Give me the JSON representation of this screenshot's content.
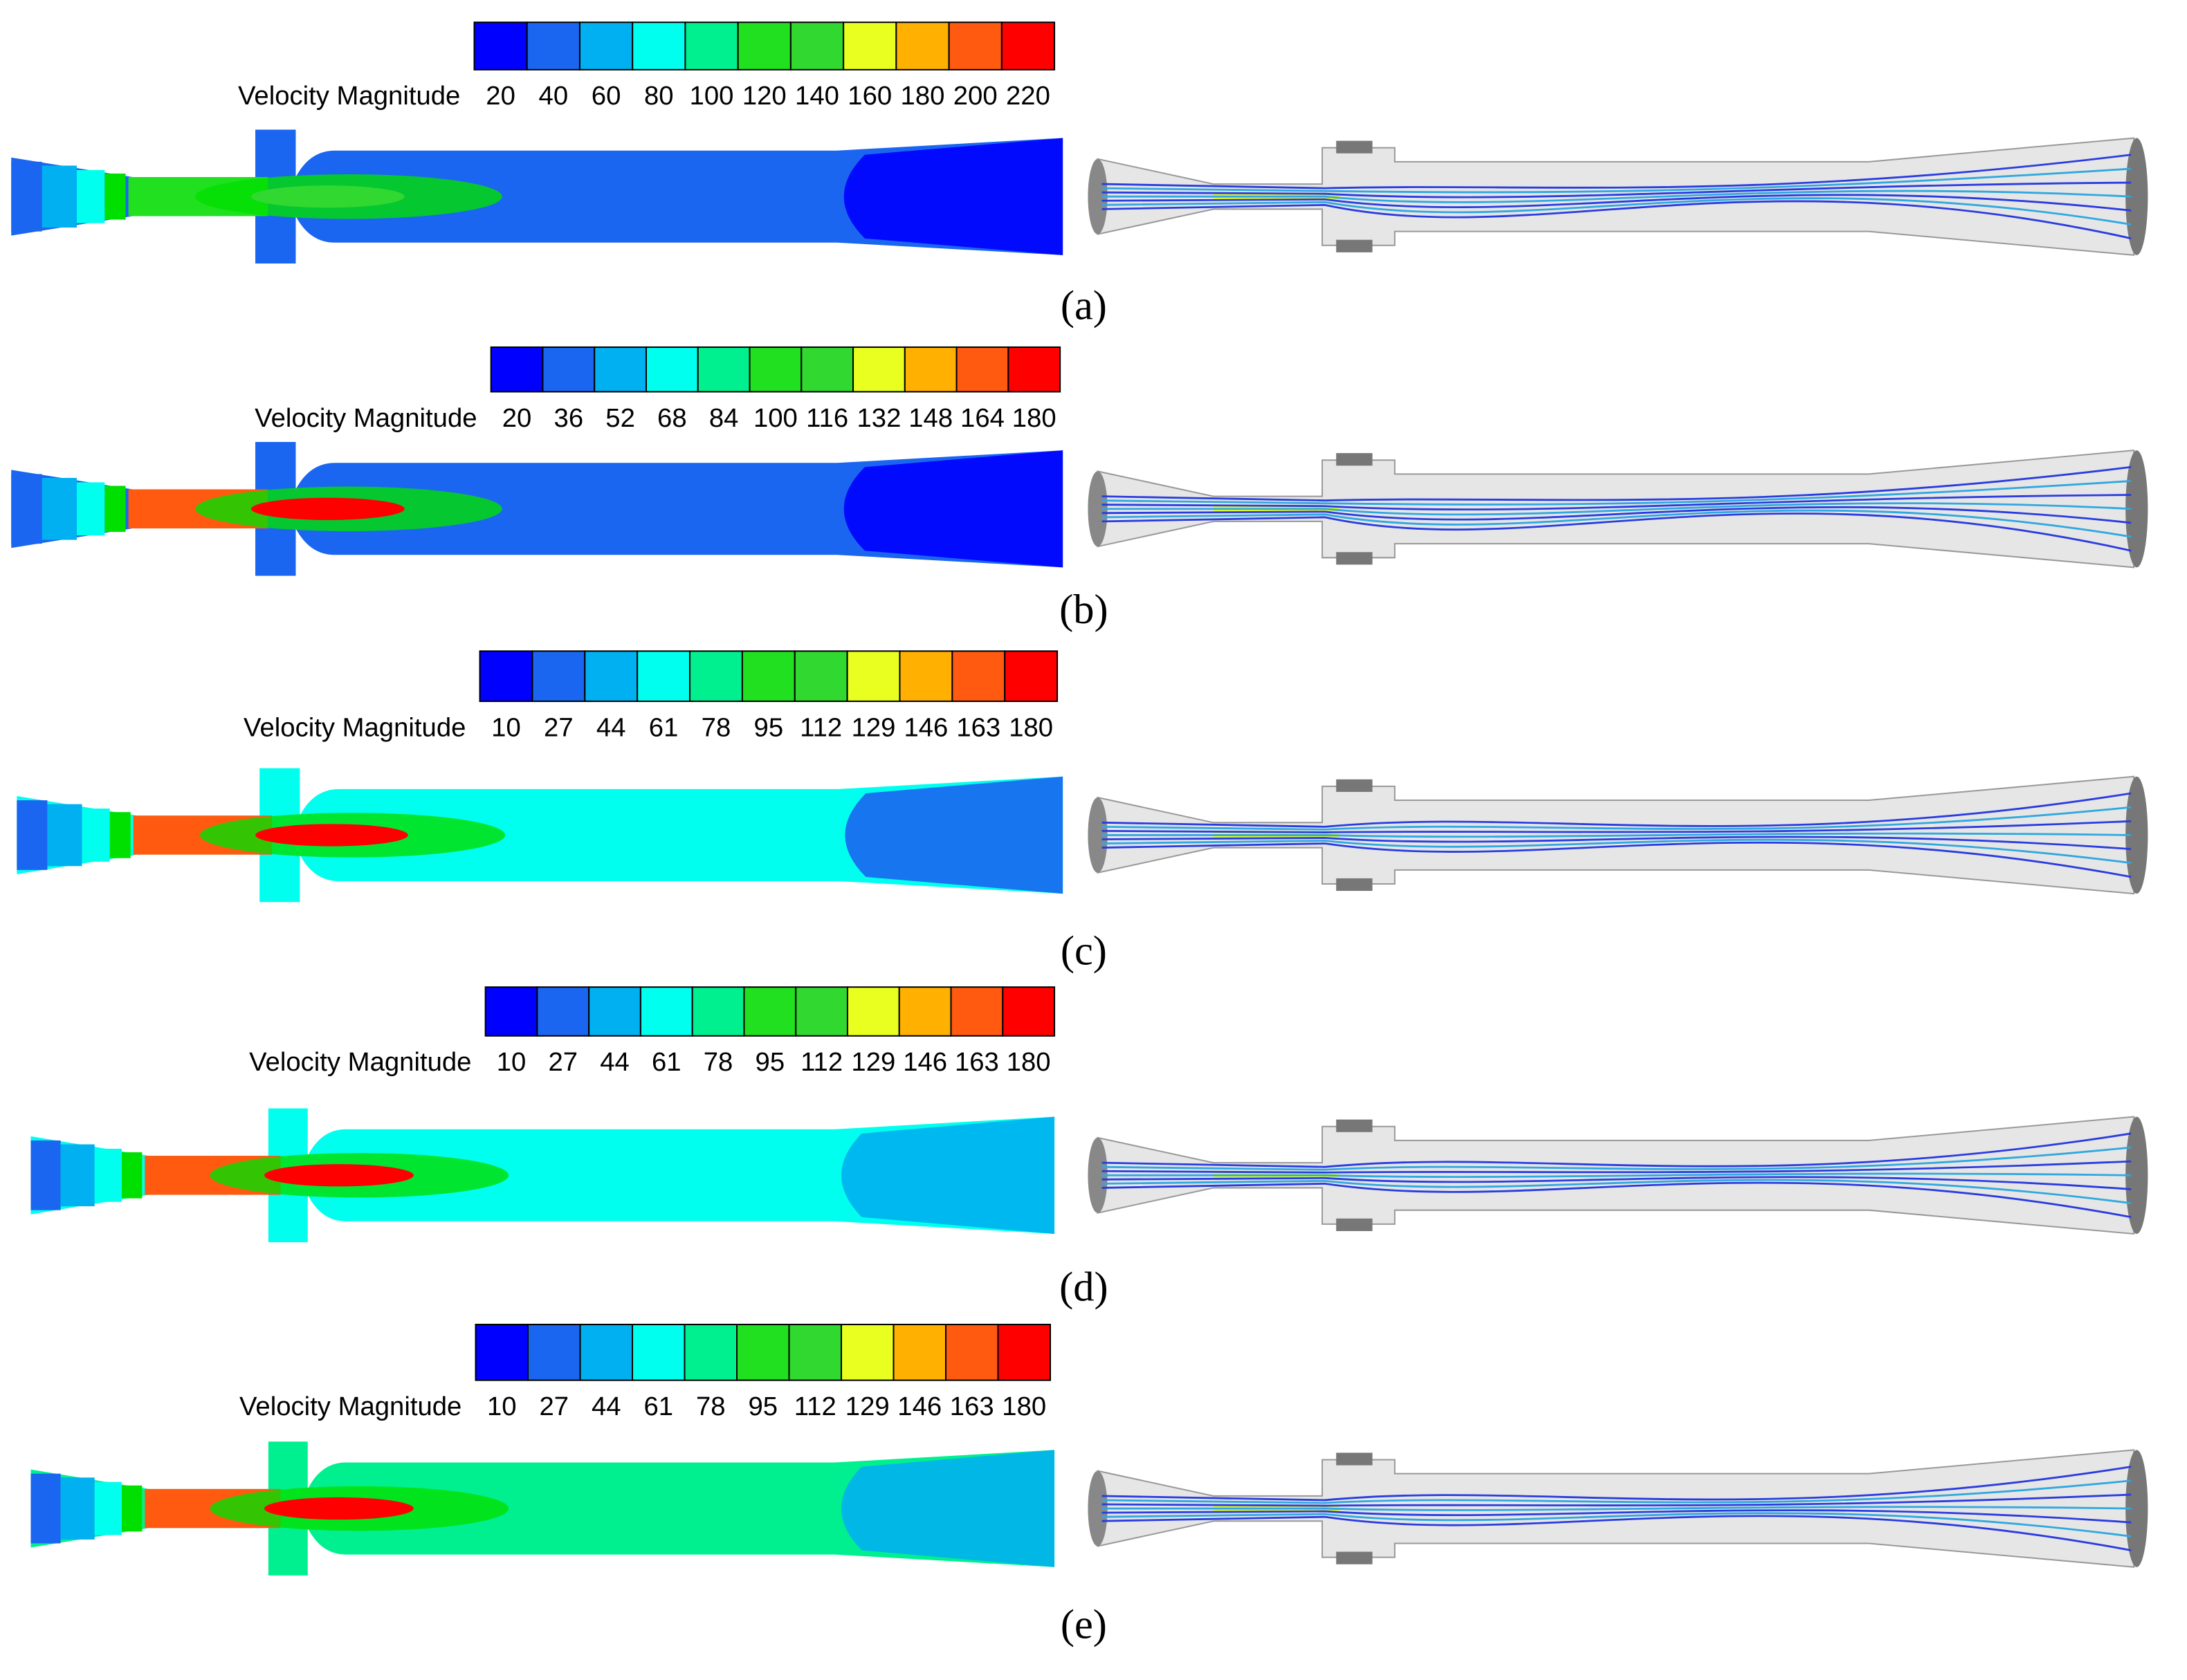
{
  "colorbar_colors": [
    "#0000ff",
    "#1a66f0",
    "#00b0f0",
    "#00ffee",
    "#00f090",
    "#00e000",
    "#20e020",
    "#30d830",
    "#e8ff20",
    "#ffb000",
    "#ff5a10",
    "#ff0000"
  ],
  "panels": [
    {
      "label": "(a)",
      "colorbar_title": "Velocity Magnitude",
      "colorbar_ticks": [
        20,
        40,
        60,
        80,
        100,
        120,
        140,
        160,
        180,
        200,
        220
      ]
    },
    {
      "label": "(b)",
      "colorbar_title": "Velocity Magnitude",
      "colorbar_ticks": [
        20,
        36,
        52,
        68,
        84,
        100,
        116,
        132,
        148,
        164,
        180
      ]
    },
    {
      "label": "(c)",
      "colorbar_title": "Velocity Magnitude",
      "colorbar_ticks": [
        10,
        27,
        44,
        61,
        78,
        95,
        112,
        129,
        146,
        163,
        180
      ]
    },
    {
      "label": "(d)",
      "colorbar_title": "Velocity Magnitude",
      "colorbar_ticks": [
        10,
        27,
        44,
        61,
        78,
        95,
        112,
        129,
        146,
        163,
        180
      ]
    },
    {
      "label": "(e)",
      "colorbar_title": "Velocity Magnitude",
      "colorbar_ticks": [
        10,
        27,
        44,
        61,
        78,
        95,
        112,
        129,
        146,
        163,
        180
      ]
    }
  ]
}
